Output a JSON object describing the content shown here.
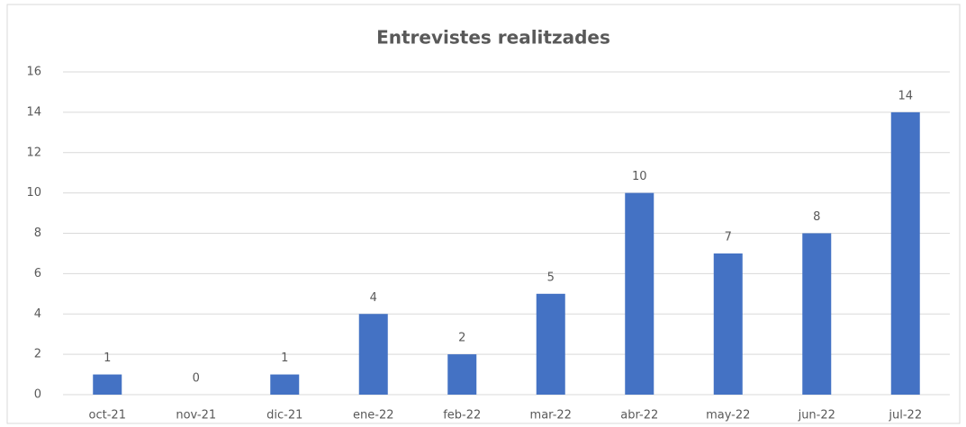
{
  "chart_data": {
    "type": "bar",
    "title": "Entrevistes realitzades",
    "categories": [
      "oct-21",
      "nov-21",
      "dic-21",
      "ene-22",
      "feb-22",
      "mar-22",
      "abr-22",
      "may-22",
      "jun-22",
      "jul-22"
    ],
    "values": [
      1,
      0,
      1,
      4,
      2,
      5,
      10,
      7,
      8,
      14
    ],
    "color": "#4472c4",
    "ylim": [
      0,
      16
    ],
    "yticks": [
      0,
      2,
      4,
      6,
      8,
      10,
      12,
      14,
      16
    ],
    "grid": true
  }
}
